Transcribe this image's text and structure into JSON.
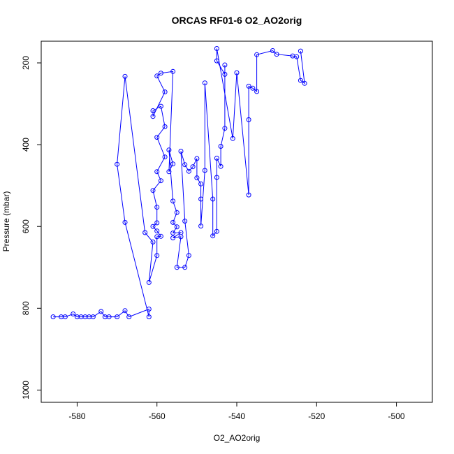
{
  "chart_data": {
    "type": "scatter",
    "title": "ORCAS RF01-6 O2_AO2orig",
    "xlabel": "O2_AO2orig",
    "ylabel": "Pressure (mbar)",
    "xlim": [
      -589,
      -491
    ],
    "ylim": [
      1030,
      147
    ],
    "y_inverted": true,
    "grid": false,
    "color": "#0000ff",
    "x_ticks": [
      -580,
      -560,
      -540,
      -520,
      -500
    ],
    "y_ticks": [
      200,
      400,
      600,
      800,
      1000
    ],
    "series": [
      {
        "values": [
          {
            "x": -586,
            "y": 821
          },
          {
            "x": -584,
            "y": 821
          },
          {
            "x": -583,
            "y": 821
          },
          {
            "x": -581,
            "y": 814
          },
          {
            "x": -580,
            "y": 821
          },
          {
            "x": -579,
            "y": 821
          },
          {
            "x": -578,
            "y": 821
          },
          {
            "x": -577,
            "y": 821
          },
          {
            "x": -576,
            "y": 821
          },
          {
            "x": -574,
            "y": 808
          },
          {
            "x": -573,
            "y": 821
          },
          {
            "x": -572,
            "y": 821
          },
          {
            "x": -570,
            "y": 821
          },
          {
            "x": -568,
            "y": 806
          },
          {
            "x": -567,
            "y": 821
          },
          {
            "x": -562,
            "y": 802
          },
          {
            "x": -562,
            "y": 821
          },
          {
            "x": -568,
            "y": 590
          },
          {
            "x": -570,
            "y": 448
          },
          {
            "x": -568,
            "y": 233
          },
          {
            "x": -563,
            "y": 615
          },
          {
            "x": -561,
            "y": 638
          },
          {
            "x": -562,
            "y": 737
          },
          {
            "x": -560,
            "y": 671
          },
          {
            "x": -560,
            "y": 625
          },
          {
            "x": -559,
            "y": 624
          },
          {
            "x": -560,
            "y": 611
          },
          {
            "x": -561,
            "y": 600
          },
          {
            "x": -560,
            "y": 591
          },
          {
            "x": -560,
            "y": 553
          },
          {
            "x": -561,
            "y": 512
          },
          {
            "x": -559,
            "y": 488
          },
          {
            "x": -560,
            "y": 466
          },
          {
            "x": -558,
            "y": 430
          },
          {
            "x": -560,
            "y": 382
          },
          {
            "x": -558,
            "y": 356
          },
          {
            "x": -559,
            "y": 306
          },
          {
            "x": -561,
            "y": 317
          },
          {
            "x": -561,
            "y": 331
          },
          {
            "x": -558,
            "y": 271
          },
          {
            "x": -560,
            "y": 232
          },
          {
            "x": -559,
            "y": 225
          },
          {
            "x": -556,
            "y": 221
          },
          {
            "x": -557,
            "y": 466
          },
          {
            "x": -556,
            "y": 447
          },
          {
            "x": -557,
            "y": 413
          },
          {
            "x": -556,
            "y": 538
          },
          {
            "x": -555,
            "y": 566
          },
          {
            "x": -556,
            "y": 590
          },
          {
            "x": -555,
            "y": 601
          },
          {
            "x": -556,
            "y": 616
          },
          {
            "x": -554,
            "y": 615
          },
          {
            "x": -556,
            "y": 628
          },
          {
            "x": -554,
            "y": 625
          },
          {
            "x": -555,
            "y": 700
          },
          {
            "x": -553,
            "y": 700
          },
          {
            "x": -552,
            "y": 671
          },
          {
            "x": -553,
            "y": 587
          },
          {
            "x": -554,
            "y": 416
          },
          {
            "x": -553,
            "y": 449
          },
          {
            "x": -552,
            "y": 465
          },
          {
            "x": -551,
            "y": 454
          },
          {
            "x": -550,
            "y": 434
          },
          {
            "x": -550,
            "y": 481
          },
          {
            "x": -549,
            "y": 496
          },
          {
            "x": -549,
            "y": 533
          },
          {
            "x": -549,
            "y": 599
          },
          {
            "x": -548,
            "y": 463
          },
          {
            "x": -548,
            "y": 249
          },
          {
            "x": -546,
            "y": 533
          },
          {
            "x": -546,
            "y": 623
          },
          {
            "x": -545,
            "y": 612
          },
          {
            "x": -545,
            "y": 480
          },
          {
            "x": -545,
            "y": 433
          },
          {
            "x": -544,
            "y": 453
          },
          {
            "x": -544,
            "y": 404
          },
          {
            "x": -543,
            "y": 360
          },
          {
            "x": -543,
            "y": 205
          },
          {
            "x": -543,
            "y": 228
          },
          {
            "x": -545,
            "y": 195
          },
          {
            "x": -545,
            "y": 165
          },
          {
            "x": -541,
            "y": 385
          },
          {
            "x": -540,
            "y": 224
          },
          {
            "x": -537,
            "y": 523
          },
          {
            "x": -537,
            "y": 339
          },
          {
            "x": -537,
            "y": 257
          },
          {
            "x": -536,
            "y": 262
          },
          {
            "x": -535,
            "y": 270
          },
          {
            "x": -535,
            "y": 180
          },
          {
            "x": -531,
            "y": 170
          },
          {
            "x": -530,
            "y": 179
          },
          {
            "x": -526,
            "y": 183
          },
          {
            "x": -525,
            "y": 185
          },
          {
            "x": -524,
            "y": 243
          },
          {
            "x": -523,
            "y": 250
          },
          {
            "x": -524,
            "y": 171
          }
        ]
      }
    ]
  }
}
